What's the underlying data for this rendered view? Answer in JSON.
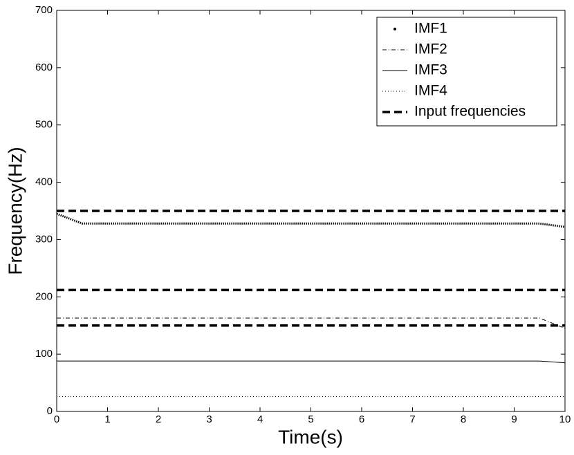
{
  "chart_data": {
    "type": "line",
    "x_label": "Time(s)",
    "y_label": "Frequency(Hz)",
    "x": [
      0,
      0.5,
      1,
      1.5,
      2,
      2.5,
      3,
      3.5,
      4,
      4.5,
      5,
      5.5,
      6,
      6.5,
      7,
      7.5,
      8,
      8.5,
      9,
      9.5,
      10
    ],
    "series": [
      {
        "name": "IMF1",
        "color": "#000000",
        "style": "dot",
        "values": [
          345,
          328,
          328,
          328,
          328,
          328,
          328,
          328,
          328,
          328,
          328,
          328,
          328,
          328,
          328,
          328,
          328,
          328,
          328,
          328,
          322
        ]
      },
      {
        "name": "IMF2",
        "color": "#000000",
        "style": "dashdot",
        "values": [
          163,
          163,
          163,
          163,
          163,
          163,
          163,
          163,
          163,
          163,
          163,
          163,
          163,
          163,
          163,
          163,
          163,
          163,
          163,
          163,
          145
        ]
      },
      {
        "name": "IMF3",
        "color": "#000000",
        "style": "solid",
        "values": [
          88,
          88,
          88,
          88,
          88,
          88,
          88,
          88,
          88,
          88,
          88,
          88,
          88,
          88,
          88,
          88,
          88,
          88,
          88,
          88,
          85
        ]
      },
      {
        "name": "IMF4",
        "color": "#000000",
        "style": "dotted",
        "values": [
          26,
          26,
          26,
          26,
          26,
          26,
          26,
          26,
          26,
          26,
          26,
          26,
          26,
          26,
          26,
          26,
          26,
          26,
          26,
          26,
          26
        ]
      },
      {
        "name": "Input frequencies",
        "color": "#000000",
        "style": "dashed",
        "levels": [
          350,
          212,
          150
        ]
      }
    ],
    "xlim": [
      0,
      10
    ],
    "xticks": [
      0,
      1,
      2,
      3,
      4,
      5,
      6,
      7,
      8,
      9,
      10
    ],
    "ylim": [
      0,
      700
    ],
    "yticks": [
      0,
      100,
      200,
      300,
      400,
      500,
      600,
      700
    ],
    "grid": false,
    "legend": "upper right"
  }
}
